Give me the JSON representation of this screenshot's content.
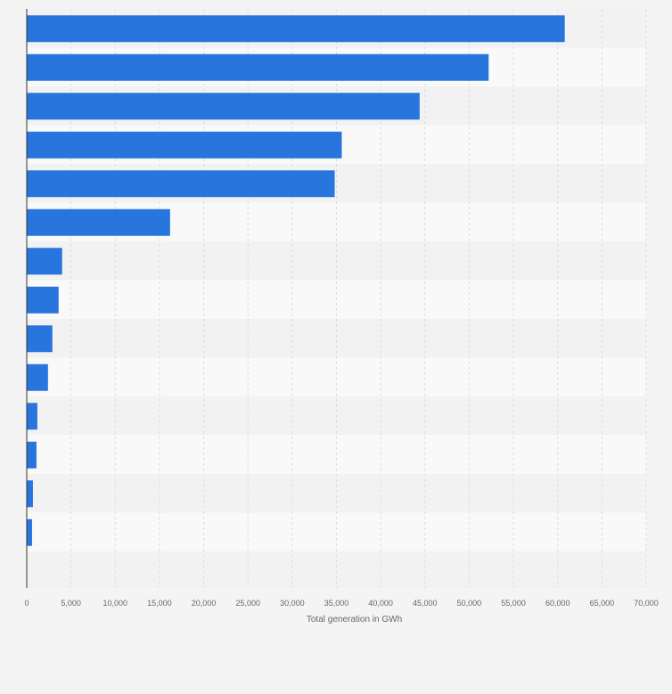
{
  "chart_data": {
    "type": "bar",
    "orientation": "horizontal",
    "categories": [
      "",
      "",
      "",
      "",
      "",
      "",
      "",
      "",
      "",
      "",
      "",
      "",
      "",
      ""
    ],
    "values": [
      60800,
      52200,
      44400,
      35600,
      34800,
      16200,
      4000,
      3600,
      2900,
      2400,
      1200,
      1100,
      700,
      600
    ],
    "xlabel": "Total generation in GWh",
    "ylabel": "",
    "xlim": [
      0,
      70000
    ],
    "xticks": [
      "0",
      "5,000",
      "10,000",
      "15,000",
      "20,000",
      "25,000",
      "30,000",
      "35,000",
      "40,000",
      "45,000",
      "50,000",
      "55,000",
      "60,000",
      "65,000",
      "70,000"
    ],
    "grid": true,
    "legend": "none",
    "colors": {
      "bar": "#2876dd",
      "background": "#f4f4f4",
      "band_dark": "#f2f2f2",
      "band_light": "#f9f9f9",
      "grid": "#dddddd",
      "axis": "#333333",
      "text": "#666666"
    }
  }
}
